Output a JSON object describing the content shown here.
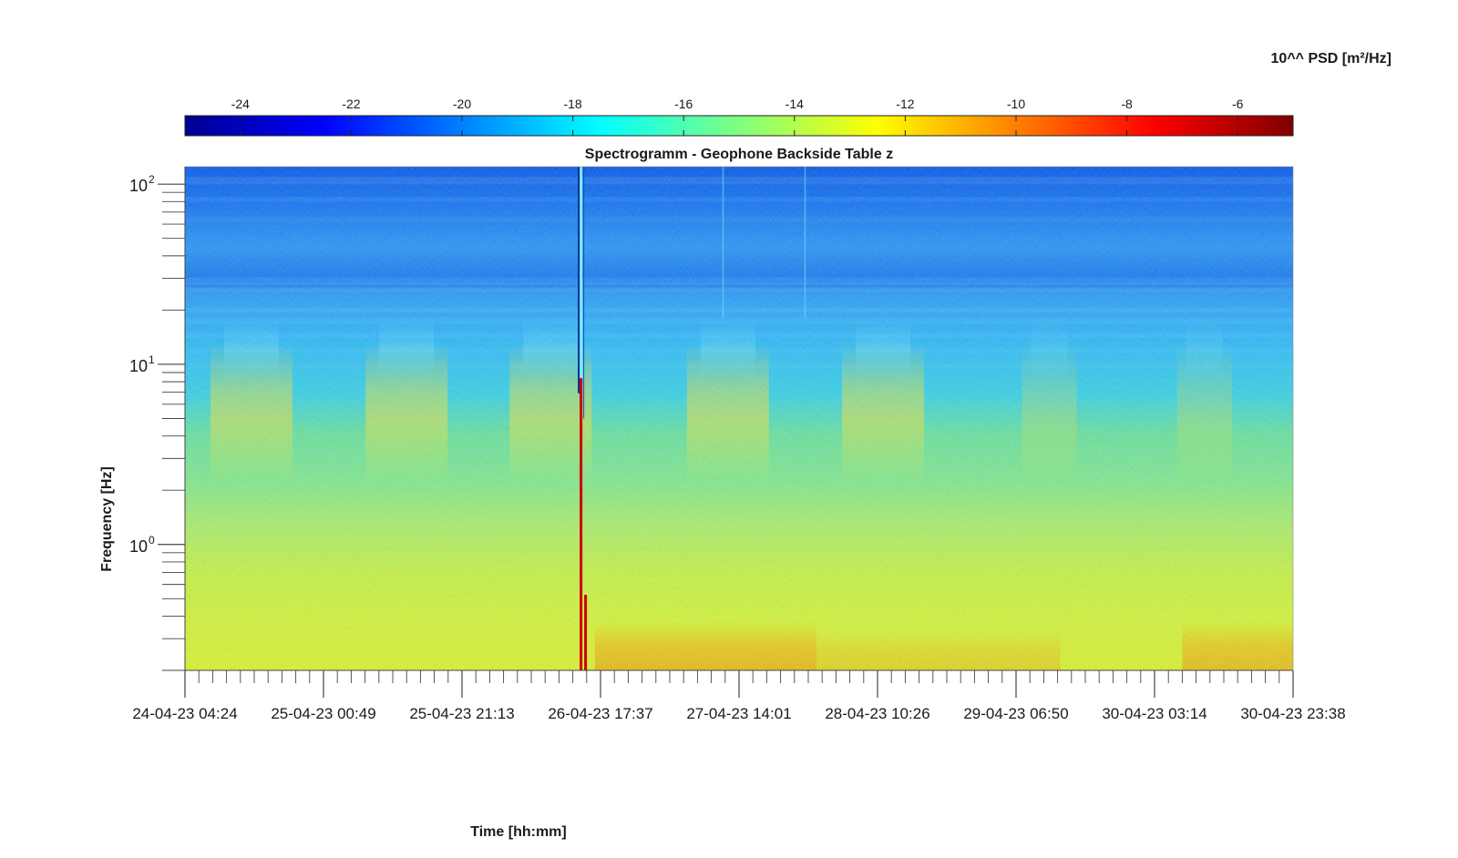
{
  "chart_data": {
    "type": "heatmap",
    "title": "Spectrogramm - Geophone Backside Table z",
    "xlabel": "Time [hh:mm]",
    "ylabel": "Frequency [Hz]",
    "yscale": "log",
    "ylim": [
      0.2,
      125
    ],
    "y_ticks": [
      {
        "base": "10",
        "exp": "0",
        "value": 1
      },
      {
        "base": "10",
        "exp": "1",
        "value": 10
      },
      {
        "base": "10",
        "exp": "2",
        "value": 100
      }
    ],
    "x_ticks": [
      "24-04-23 04:24",
      "25-04-23 00:49",
      "25-04-23 21:13",
      "26-04-23 17:37",
      "27-04-23 14:01",
      "28-04-23 10:26",
      "29-04-23 06:50",
      "30-04-23 03:14",
      "30-04-23 23:38"
    ],
    "colorbar": {
      "label": "10^^ PSD [m²/Hz]",
      "colormap": "jet",
      "range": [
        -25,
        -5
      ],
      "ticks": [
        "-24",
        "-22",
        "-20",
        "-18",
        "-16",
        "-14",
        "-12",
        "-10",
        "-8",
        "-6"
      ],
      "tick_values": [
        -24,
        -22,
        -20,
        -18,
        -16,
        -14,
        -12,
        -10,
        -8,
        -6
      ]
    },
    "features": {
      "spike_time_fraction": 0.357,
      "description_free": true
    }
  }
}
